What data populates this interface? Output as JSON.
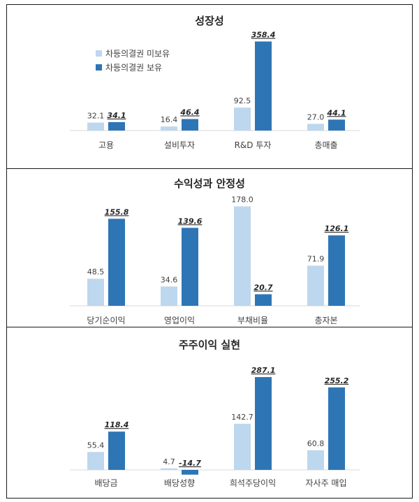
{
  "colors": {
    "light": "#bdd7ee",
    "dark": "#2e75b6",
    "axis": "#d9d9d9"
  },
  "legend": [
    "차등의결권 미보유",
    "차등의결권 보유"
  ],
  "chart_data": [
    {
      "type": "bar",
      "title": "성장성",
      "categories": [
        "고용",
        "설비투자",
        "R&D 투자",
        "총매출"
      ],
      "series": [
        {
          "name": "차등의결권 미보유",
          "values": [
            32.1,
            16.4,
            92.5,
            27.0
          ]
        },
        {
          "name": "차등의결권 보유",
          "values": [
            34.1,
            46.4,
            358.4,
            44.1
          ]
        }
      ],
      "value_labels": [
        [
          "32.1",
          "16.4",
          "92.5",
          "27.0"
        ],
        [
          "34.1",
          "46.4",
          "358.4",
          "44.1"
        ]
      ],
      "legend_position": "top-left",
      "grid": false
    },
    {
      "type": "bar",
      "title": "수익성과 안정성",
      "categories": [
        "당기순이익",
        "영업이익",
        "부채비율",
        "총자본"
      ],
      "series": [
        {
          "name": "차등의결권 미보유",
          "values": [
            48.5,
            34.6,
            178.0,
            71.9
          ]
        },
        {
          "name": "차등의결권 보유",
          "values": [
            155.8,
            139.6,
            20.7,
            126.1
          ]
        }
      ],
      "value_labels": [
        [
          "48.5",
          "34.6",
          "178.0",
          "71.9"
        ],
        [
          "155.8",
          "139.6",
          "20.7",
          "126.1"
        ]
      ],
      "grid": false
    },
    {
      "type": "bar",
      "title": "주주이익 실현",
      "categories": [
        "배당금",
        "배당성향",
        "희석주당이익",
        "자사주 매입"
      ],
      "series": [
        {
          "name": "차등의결권 미보유",
          "values": [
            55.4,
            4.7,
            142.7,
            60.8
          ]
        },
        {
          "name": "차등의결권 보유",
          "values": [
            118.4,
            -14.7,
            287.1,
            255.2
          ]
        }
      ],
      "value_labels": [
        [
          "55.4",
          "4.7",
          "142.7",
          "60.8"
        ],
        [
          "118.4",
          "-14.7",
          "287.1",
          "255.2"
        ]
      ],
      "grid": false
    }
  ]
}
